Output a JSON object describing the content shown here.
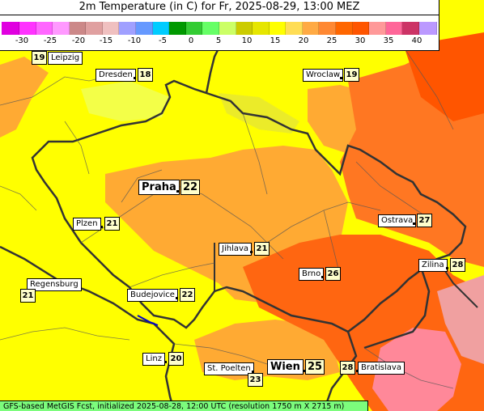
{
  "title": "2m Temperature (in C) for Fr, 2025-08-29, 13:00 MEZ",
  "legend": {
    "ticks": [
      "-30",
      "-25",
      "-20",
      "-15",
      "-10",
      "-5",
      "0",
      "5",
      "10",
      "15",
      "20",
      "25",
      "30",
      "35",
      "40"
    ],
    "colors": [
      "#e000e0",
      "#ff33ff",
      "#ff66ff",
      "#ff99ff",
      "#cc8888",
      "#e0a0a0",
      "#f0c0c0",
      "#a0a0ff",
      "#6699ff",
      "#00ccff",
      "#009900",
      "#33cc33",
      "#66ff66",
      "#ccff66",
      "#cccc00",
      "#e6e600",
      "#ffff00",
      "#ffdd55",
      "#ffaa44",
      "#ff8833",
      "#ff6600",
      "#ff5500",
      "#ff9999",
      "#ff6699",
      "#cc3366",
      "#bb99ff"
    ]
  },
  "cities": [
    {
      "id": "leipzig",
      "name": "Leipzig",
      "temp": "19"
    },
    {
      "id": "dresden",
      "name": "Dresden",
      "temp": "18"
    },
    {
      "id": "wroclaw",
      "name": "Wroclaw",
      "temp": "19"
    },
    {
      "id": "praha",
      "name": "Praha",
      "temp": "22"
    },
    {
      "id": "plzen",
      "name": "Plzen",
      "temp": "21"
    },
    {
      "id": "ostrava",
      "name": "Ostrava",
      "temp": "27"
    },
    {
      "id": "jihlava",
      "name": "Jihlava",
      "temp": "21"
    },
    {
      "id": "brno",
      "name": "Brno",
      "temp": "26"
    },
    {
      "id": "zilina",
      "name": "Zilina",
      "temp": "28"
    },
    {
      "id": "regensburg",
      "name": "Regensburg",
      "temp": "21"
    },
    {
      "id": "budejovice",
      "name": "Budejovice",
      "temp": "22"
    },
    {
      "id": "linz",
      "name": "Linz",
      "temp": "20"
    },
    {
      "id": "st-poelten",
      "name": "St. Poelten",
      "temp": "23"
    },
    {
      "id": "wien",
      "name": "Wien",
      "temp": "25"
    },
    {
      "id": "bratislava",
      "name": "Bratislava",
      "temp": "28"
    }
  ],
  "footer": "GFS-based MetGIS Fcst, initialized 2025-08-28, 12:00 UTC  (resolution 1750 m X 2715 m)"
}
